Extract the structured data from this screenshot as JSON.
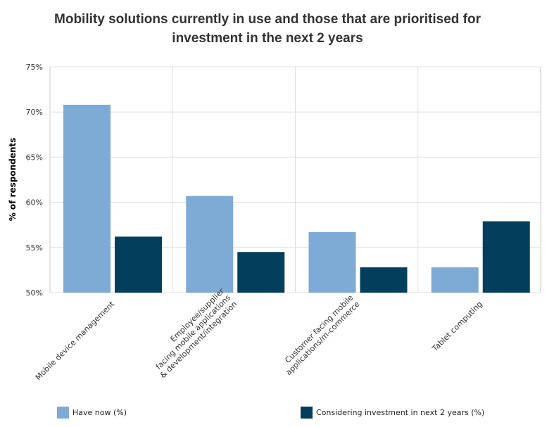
{
  "chart_data": {
    "type": "bar",
    "title": "Mobility solutions currently in use and those that are prioritised for investment in the next 2 years",
    "title_lines": [
      "Mobility solutions currently in use and those that are prioritised for",
      "investment in the next 2 years"
    ],
    "xlabel": "",
    "ylabel": "% of respondents",
    "ylim": [
      50,
      75
    ],
    "yticks": [
      50,
      55,
      60,
      65,
      70,
      75
    ],
    "ytick_format": "%",
    "grid": true,
    "categories": [
      [
        "Mobile device management"
      ],
      [
        "Employee/supplier",
        "facing mobile applications",
        "& development/integration"
      ],
      [
        "Customer facing mobile",
        "applications/m-commerce"
      ],
      [
        "Tablet computing"
      ]
    ],
    "series": [
      {
        "name": "Have now (%)",
        "color": "#7eaad6",
        "values": [
          70.8,
          60.7,
          56.7,
          52.8
        ]
      },
      {
        "name": "Considering investment in next 2 years (%)",
        "color": "#033f5c",
        "values": [
          56.2,
          54.5,
          52.8,
          57.9
        ]
      }
    ],
    "legend_position": "bottom"
  }
}
